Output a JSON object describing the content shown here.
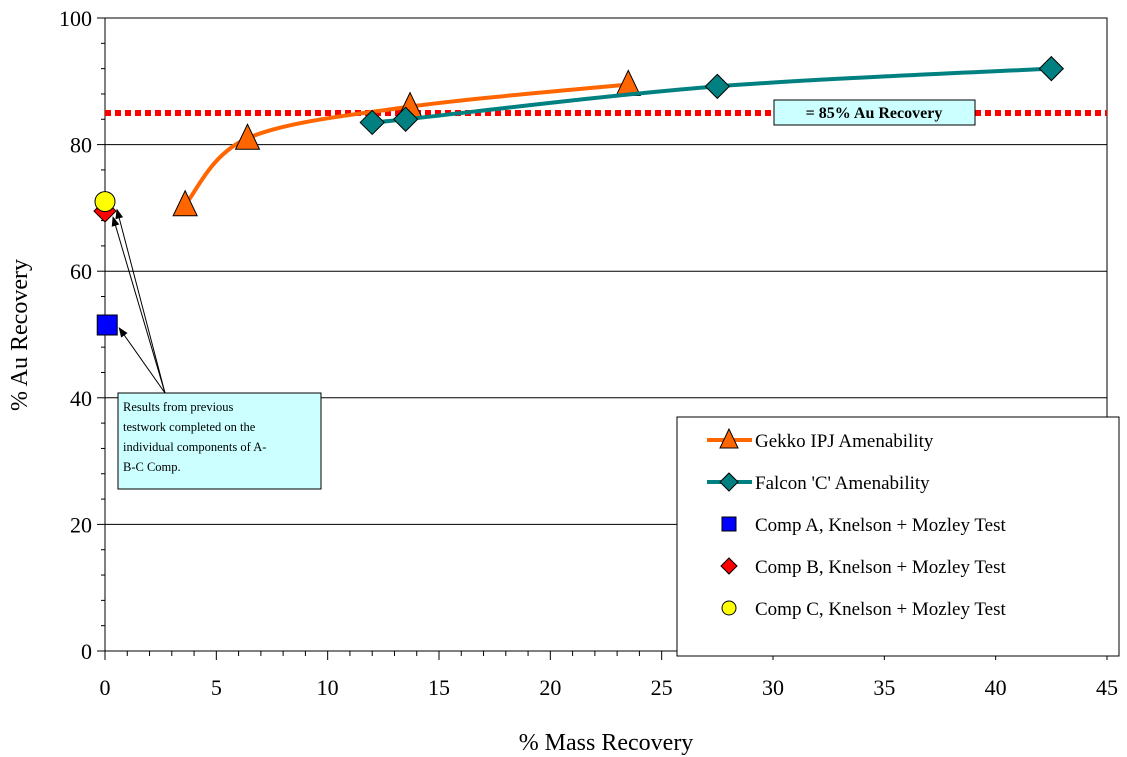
{
  "chart_data": {
    "type": "line",
    "xlabel": "% Mass Recovery",
    "ylabel": "% Au Recovery",
    "xlim": [
      0,
      45
    ],
    "ylim": [
      0,
      100
    ],
    "x_ticks": [
      0,
      5,
      10,
      15,
      20,
      25,
      30,
      35,
      40,
      45
    ],
    "y_ticks": [
      0,
      20,
      40,
      60,
      80,
      100
    ],
    "grid": "horizontal",
    "legend_position": "bottom-right",
    "series": [
      {
        "name": "Gekko IPJ Amenability",
        "color": "#ff6600",
        "marker": "triangle",
        "x": [
          3.6,
          6.4,
          13.7,
          23.5
        ],
        "y": [
          70.5,
          81.0,
          86.0,
          89.5
        ]
      },
      {
        "name": "Falcon 'C' Amenability",
        "color": "#008080",
        "marker": "diamond",
        "x": [
          12.0,
          13.5,
          27.5,
          42.5
        ],
        "y": [
          83.5,
          84.0,
          89.2,
          92.0
        ]
      },
      {
        "name": "Comp A, Knelson + Mozley Test",
        "color": "#0000ff",
        "marker": "square",
        "x": [
          0.1
        ],
        "y": [
          51.5
        ]
      },
      {
        "name": "Comp B, Knelson + Mozley Test",
        "color": "#ff0000",
        "marker": "diamond",
        "x": [
          0.0
        ],
        "y": [
          69.5
        ]
      },
      {
        "name": "Comp C, Knelson + Mozley Test",
        "color": "#ffff00",
        "marker": "circle",
        "x": [
          0.0
        ],
        "y": [
          71.0
        ]
      }
    ],
    "reference_line": {
      "y": 85,
      "color": "#ff0000",
      "style": "dotted",
      "label": "=   85% Au Recovery"
    },
    "annotation": {
      "lines": [
        "Results from previous",
        "testwork completed on the",
        "individual components of A-",
        "B-C Comp."
      ],
      "background": "#ccffff"
    }
  }
}
